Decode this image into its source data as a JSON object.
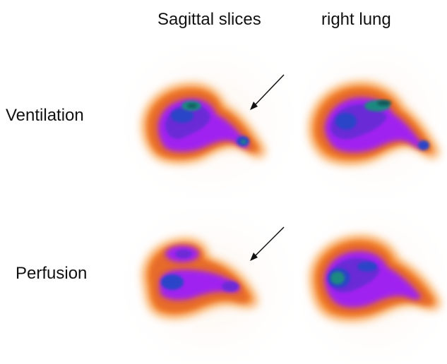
{
  "header": {
    "left": "Sagittal slices",
    "right": "right lung"
  },
  "rows": {
    "ventilation": "Ventilation",
    "perfusion": "Perfusion"
  },
  "colormap": [
    "#ffffff",
    "#f8b060",
    "#f57a10",
    "#e66a2a",
    "#a020f0",
    "#6b2bd6",
    "#2a45c8",
    "#1f8a80",
    "#0c5a5a"
  ],
  "icons": [
    "arrow-annotation-icon"
  ]
}
